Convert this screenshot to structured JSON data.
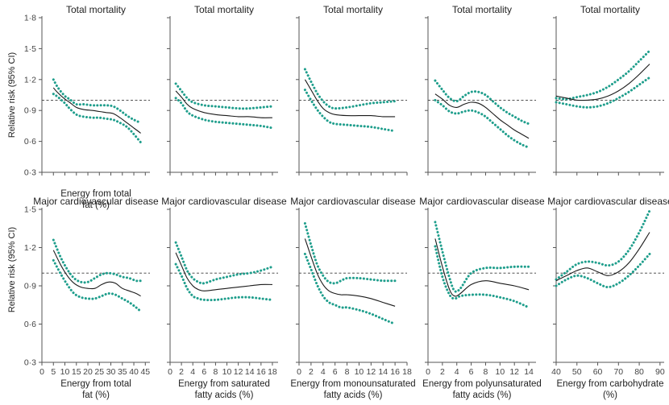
{
  "colors": {
    "estimate": "#1a1a1a",
    "ci": "#1f9e8c",
    "reference": "#3a3a3a",
    "axis": "#555555"
  },
  "y_axis": {
    "label": "Relative risk (95% CI)",
    "top_ticks": [
      "0·3",
      "0·6",
      "0·9",
      "1·2",
      "1·5",
      "1·8"
    ],
    "bottom_ticks": [
      "0·3",
      "0·6",
      "0·9",
      "1·2",
      "1·5"
    ]
  },
  "chart_data": [
    {
      "id": "r0c0",
      "type": "line",
      "title": "Total mortality",
      "xlabel": [
        "Energy from total",
        "fat (%)"
      ],
      "xlim": [
        0,
        47
      ],
      "ylim": [
        0.3,
        1.8
      ],
      "reference_line": 1.0,
      "x_ticks": [],
      "estimate": {
        "x": [
          5,
          7,
          10,
          12,
          15,
          18,
          22,
          25,
          28,
          31,
          34,
          37,
          40,
          43
        ],
        "y": [
          1.12,
          1.07,
          1.01,
          0.98,
          0.93,
          0.91,
          0.9,
          0.89,
          0.88,
          0.87,
          0.83,
          0.78,
          0.73,
          0.68
        ]
      },
      "ci_lower": {
        "x": [
          5,
          7,
          10,
          12,
          15,
          18,
          22,
          25,
          28,
          31,
          34,
          37,
          40,
          43
        ],
        "y": [
          1.06,
          1.03,
          0.97,
          0.92,
          0.86,
          0.84,
          0.83,
          0.83,
          0.82,
          0.81,
          0.78,
          0.74,
          0.67,
          0.59
        ]
      },
      "ci_upper": {
        "x": [
          5,
          7,
          10,
          12,
          15,
          18,
          22,
          25,
          28,
          31,
          34,
          37,
          40,
          43
        ],
        "y": [
          1.2,
          1.12,
          1.04,
          1.01,
          0.96,
          0.96,
          0.95,
          0.95,
          0.95,
          0.94,
          0.9,
          0.85,
          0.81,
          0.78
        ]
      }
    },
    {
      "id": "r0c1",
      "type": "line",
      "title": "Total mortality",
      "xlabel": [
        "",
        ""
      ],
      "xlim": [
        0,
        19
      ],
      "ylim": [
        0.3,
        1.8
      ],
      "reference_line": 1.0,
      "x_ticks": [],
      "estimate": {
        "x": [
          1,
          2,
          3,
          4,
          6,
          8,
          10,
          12,
          14,
          16,
          18
        ],
        "y": [
          1.09,
          1.03,
          0.96,
          0.92,
          0.88,
          0.86,
          0.85,
          0.84,
          0.84,
          0.83,
          0.83
        ]
      },
      "ci_lower": {
        "x": [
          1,
          2,
          3,
          4,
          6,
          8,
          10,
          12,
          14,
          16,
          18
        ],
        "y": [
          1.02,
          0.97,
          0.89,
          0.85,
          0.81,
          0.79,
          0.78,
          0.77,
          0.76,
          0.75,
          0.73
        ]
      },
      "ci_upper": {
        "x": [
          1,
          2,
          3,
          4,
          6,
          8,
          10,
          12,
          14,
          16,
          18
        ],
        "y": [
          1.16,
          1.09,
          1.02,
          0.98,
          0.95,
          0.94,
          0.93,
          0.92,
          0.92,
          0.93,
          0.94
        ]
      }
    },
    {
      "id": "r0c2",
      "type": "line",
      "title": "Total mortality",
      "xlabel": [
        "",
        ""
      ],
      "xlim": [
        0,
        18
      ],
      "ylim": [
        0.3,
        1.8
      ],
      "reference_line": 1.0,
      "x_ticks": [],
      "estimate": {
        "x": [
          1,
          2,
          3,
          4,
          5,
          6,
          8,
          10,
          12,
          14,
          16
        ],
        "y": [
          1.2,
          1.1,
          1.0,
          0.92,
          0.88,
          0.86,
          0.85,
          0.85,
          0.85,
          0.84,
          0.84
        ]
      },
      "ci_lower": {
        "x": [
          1,
          2,
          3,
          4,
          5,
          6,
          8,
          10,
          12,
          14,
          16
        ],
        "y": [
          1.1,
          1.0,
          0.91,
          0.84,
          0.79,
          0.77,
          0.76,
          0.75,
          0.74,
          0.72,
          0.7
        ]
      },
      "ci_upper": {
        "x": [
          1,
          2,
          3,
          4,
          5,
          6,
          8,
          10,
          12,
          14,
          16
        ],
        "y": [
          1.3,
          1.18,
          1.07,
          0.99,
          0.94,
          0.92,
          0.93,
          0.95,
          0.97,
          0.98,
          0.99
        ]
      }
    },
    {
      "id": "r0c3",
      "type": "line",
      "title": "Total mortality",
      "xlabel": [
        "",
        ""
      ],
      "xlim": [
        0,
        15
      ],
      "ylim": [
        0.3,
        1.8
      ],
      "reference_line": 1.0,
      "x_ticks": [],
      "estimate": {
        "x": [
          1,
          2,
          3,
          4,
          5,
          6,
          7,
          8,
          9,
          10,
          11,
          12,
          13,
          14
        ],
        "y": [
          1.06,
          1.01,
          0.95,
          0.93,
          0.96,
          0.98,
          0.97,
          0.93,
          0.87,
          0.81,
          0.76,
          0.71,
          0.67,
          0.63
        ]
      },
      "ci_lower": {
        "x": [
          1,
          2,
          3,
          4,
          5,
          6,
          7,
          8,
          9,
          10,
          11,
          12,
          13,
          14
        ],
        "y": [
          1.0,
          0.95,
          0.89,
          0.87,
          0.89,
          0.9,
          0.88,
          0.84,
          0.78,
          0.72,
          0.66,
          0.61,
          0.57,
          0.54
        ]
      },
      "ci_upper": {
        "x": [
          1,
          2,
          3,
          4,
          5,
          6,
          7,
          8,
          9,
          10,
          11,
          12,
          13,
          14
        ],
        "y": [
          1.19,
          1.1,
          1.02,
          0.99,
          1.04,
          1.08,
          1.08,
          1.05,
          0.99,
          0.93,
          0.88,
          0.84,
          0.8,
          0.77
        ]
      }
    },
    {
      "id": "r0c4",
      "type": "line",
      "title": "Total mortality",
      "xlabel": [
        "",
        ""
      ],
      "xlim": [
        40,
        92
      ],
      "ylim": [
        0.3,
        1.8
      ],
      "reference_line": 1.0,
      "x_ticks": [],
      "estimate": {
        "x": [
          40,
          45,
          50,
          55,
          60,
          65,
          70,
          75,
          80,
          85
        ],
        "y": [
          1.04,
          1.02,
          1.0,
          1.0,
          1.01,
          1.04,
          1.09,
          1.16,
          1.25,
          1.35
        ]
      },
      "ci_lower": {
        "x": [
          40,
          45,
          50,
          55,
          60,
          65,
          70,
          75,
          80,
          85
        ],
        "y": [
          0.98,
          0.96,
          0.94,
          0.93,
          0.94,
          0.97,
          1.02,
          1.08,
          1.15,
          1.22
        ]
      },
      "ci_upper": {
        "x": [
          40,
          45,
          50,
          55,
          60,
          65,
          70,
          75,
          80,
          85
        ],
        "y": [
          1.02,
          1.01,
          1.03,
          1.05,
          1.08,
          1.13,
          1.2,
          1.28,
          1.38,
          1.48
        ]
      }
    },
    {
      "id": "r1c0",
      "type": "line",
      "title": "Major cardiovascular disease",
      "xlabel": [
        "Energy from total",
        "fat (%)"
      ],
      "xlim": [
        0,
        47
      ],
      "ylim": [
        0.3,
        1.5
      ],
      "reference_line": 1.0,
      "x_ticks": [
        "0",
        "5",
        "10",
        "15",
        "20",
        "25",
        "30",
        "35",
        "40",
        "45"
      ],
      "estimate": {
        "x": [
          5,
          8,
          11,
          14,
          17,
          20,
          23,
          26,
          29,
          32,
          35,
          38,
          41,
          43
        ],
        "y": [
          1.18,
          1.07,
          0.98,
          0.92,
          0.89,
          0.88,
          0.88,
          0.91,
          0.93,
          0.92,
          0.88,
          0.86,
          0.84,
          0.82
        ]
      },
      "ci_lower": {
        "x": [
          5,
          8,
          11,
          14,
          17,
          20,
          23,
          26,
          29,
          32,
          35,
          38,
          41,
          43
        ],
        "y": [
          1.1,
          1.0,
          0.91,
          0.84,
          0.81,
          0.8,
          0.8,
          0.82,
          0.84,
          0.83,
          0.8,
          0.77,
          0.73,
          0.7
        ]
      },
      "ci_upper": {
        "x": [
          5,
          8,
          11,
          14,
          17,
          20,
          23,
          26,
          29,
          32,
          35,
          38,
          41,
          43
        ],
        "y": [
          1.26,
          1.13,
          1.03,
          0.96,
          0.93,
          0.93,
          0.96,
          0.99,
          1.0,
          0.99,
          0.97,
          0.96,
          0.94,
          0.94
        ]
      }
    },
    {
      "id": "r1c1",
      "type": "line",
      "title": "Major cardiovascular disease",
      "xlabel": [
        "Energy from saturated",
        "fatty acids (%)"
      ],
      "xlim": [
        0,
        19
      ],
      "ylim": [
        0.3,
        1.5
      ],
      "reference_line": 1.0,
      "x_ticks": [
        "0",
        "2",
        "4",
        "6",
        "8",
        "10",
        "12",
        "14",
        "16",
        "18"
      ],
      "estimate": {
        "x": [
          1,
          2,
          3,
          4,
          5,
          6,
          8,
          10,
          12,
          14,
          16,
          18
        ],
        "y": [
          1.16,
          1.06,
          0.96,
          0.9,
          0.87,
          0.86,
          0.87,
          0.88,
          0.89,
          0.9,
          0.91,
          0.91
        ]
      },
      "ci_lower": {
        "x": [
          1,
          2,
          3,
          4,
          5,
          6,
          8,
          10,
          12,
          14,
          16,
          18
        ],
        "y": [
          1.07,
          0.98,
          0.88,
          0.82,
          0.8,
          0.79,
          0.79,
          0.8,
          0.81,
          0.81,
          0.8,
          0.79
        ]
      },
      "ci_upper": {
        "x": [
          1,
          2,
          3,
          4,
          5,
          6,
          8,
          10,
          12,
          14,
          16,
          18
        ],
        "y": [
          1.24,
          1.13,
          1.02,
          0.96,
          0.93,
          0.92,
          0.95,
          0.97,
          0.99,
          1.0,
          1.02,
          1.05
        ]
      }
    },
    {
      "id": "r1c2",
      "type": "line",
      "title": "Major cardiovascular disease",
      "xlabel": [
        "Energy from monounsaturated",
        "fatty acids (%)"
      ],
      "xlim": [
        0,
        18
      ],
      "ylim": [
        0.3,
        1.5
      ],
      "reference_line": 1.0,
      "x_ticks": [
        "0",
        "2",
        "4",
        "6",
        "8",
        "10",
        "12",
        "14",
        "16",
        "18"
      ],
      "estimate": {
        "x": [
          1,
          2,
          3,
          4,
          5,
          6,
          7,
          8,
          10,
          12,
          14,
          16
        ],
        "y": [
          1.27,
          1.13,
          1.0,
          0.91,
          0.86,
          0.84,
          0.83,
          0.83,
          0.82,
          0.8,
          0.77,
          0.74
        ]
      },
      "ci_lower": {
        "x": [
          1,
          2,
          3,
          4,
          5,
          6,
          7,
          8,
          10,
          12,
          14,
          16
        ],
        "y": [
          1.15,
          1.03,
          0.91,
          0.82,
          0.77,
          0.75,
          0.73,
          0.73,
          0.71,
          0.68,
          0.64,
          0.6
        ]
      },
      "ci_upper": {
        "x": [
          1,
          2,
          3,
          4,
          5,
          6,
          7,
          8,
          10,
          12,
          14,
          16
        ],
        "y": [
          1.39,
          1.22,
          1.07,
          0.98,
          0.93,
          0.92,
          0.94,
          0.96,
          0.96,
          0.95,
          0.94,
          0.94
        ]
      }
    },
    {
      "id": "r1c3",
      "type": "line",
      "title": "Major cardiovascular disease",
      "xlabel": [
        "Energy from polyunsaturated",
        "fatty acids (%)"
      ],
      "xlim": [
        0,
        15
      ],
      "ylim": [
        0.3,
        1.5
      ],
      "reference_line": 1.0,
      "x_ticks": [
        "0",
        "2",
        "4",
        "6",
        "8",
        "10",
        "12",
        "14"
      ],
      "estimate": {
        "x": [
          1,
          2,
          3,
          3.7,
          4.5,
          6,
          8,
          10,
          12,
          14
        ],
        "y": [
          1.27,
          1.05,
          0.87,
          0.82,
          0.84,
          0.91,
          0.94,
          0.92,
          0.9,
          0.87
        ]
      },
      "ci_lower": {
        "x": [
          1,
          2,
          3,
          3.7,
          4.5,
          6,
          8,
          10,
          12,
          14
        ],
        "y": [
          1.21,
          0.97,
          0.83,
          0.8,
          0.82,
          0.83,
          0.83,
          0.81,
          0.78,
          0.73
        ]
      },
      "ci_upper": {
        "x": [
          1,
          2,
          3,
          3.7,
          4.5,
          6,
          8,
          10,
          12,
          14
        ],
        "y": [
          1.4,
          1.17,
          0.96,
          0.86,
          0.88,
          1.0,
          1.04,
          1.04,
          1.05,
          1.05
        ]
      }
    },
    {
      "id": "r1c4",
      "type": "line",
      "title": "Major cardiovascular disease",
      "xlabel": [
        "Energy from carbohydrate",
        "(%)"
      ],
      "xlim": [
        40,
        92
      ],
      "ylim": [
        0.3,
        1.5
      ],
      "reference_line": 1.0,
      "x_ticks": [
        "40",
        "50",
        "60",
        "70",
        "80",
        "90"
      ],
      "estimate": {
        "x": [
          40,
          45,
          50,
          55,
          60,
          65,
          70,
          75,
          80,
          85
        ],
        "y": [
          0.94,
          0.98,
          1.02,
          1.04,
          1.01,
          0.98,
          1.01,
          1.08,
          1.19,
          1.32
        ]
      },
      "ci_lower": {
        "x": [
          40,
          45,
          50,
          55,
          60,
          65,
          70,
          75,
          80,
          85
        ],
        "y": [
          0.9,
          0.95,
          0.98,
          0.96,
          0.92,
          0.89,
          0.92,
          0.98,
          1.06,
          1.15
        ]
      },
      "ci_upper": {
        "x": [
          40,
          45,
          50,
          55,
          60,
          65,
          70,
          75,
          80,
          85
        ],
        "y": [
          0.95,
          1.01,
          1.07,
          1.09,
          1.08,
          1.06,
          1.09,
          1.18,
          1.32,
          1.49
        ]
      }
    }
  ]
}
